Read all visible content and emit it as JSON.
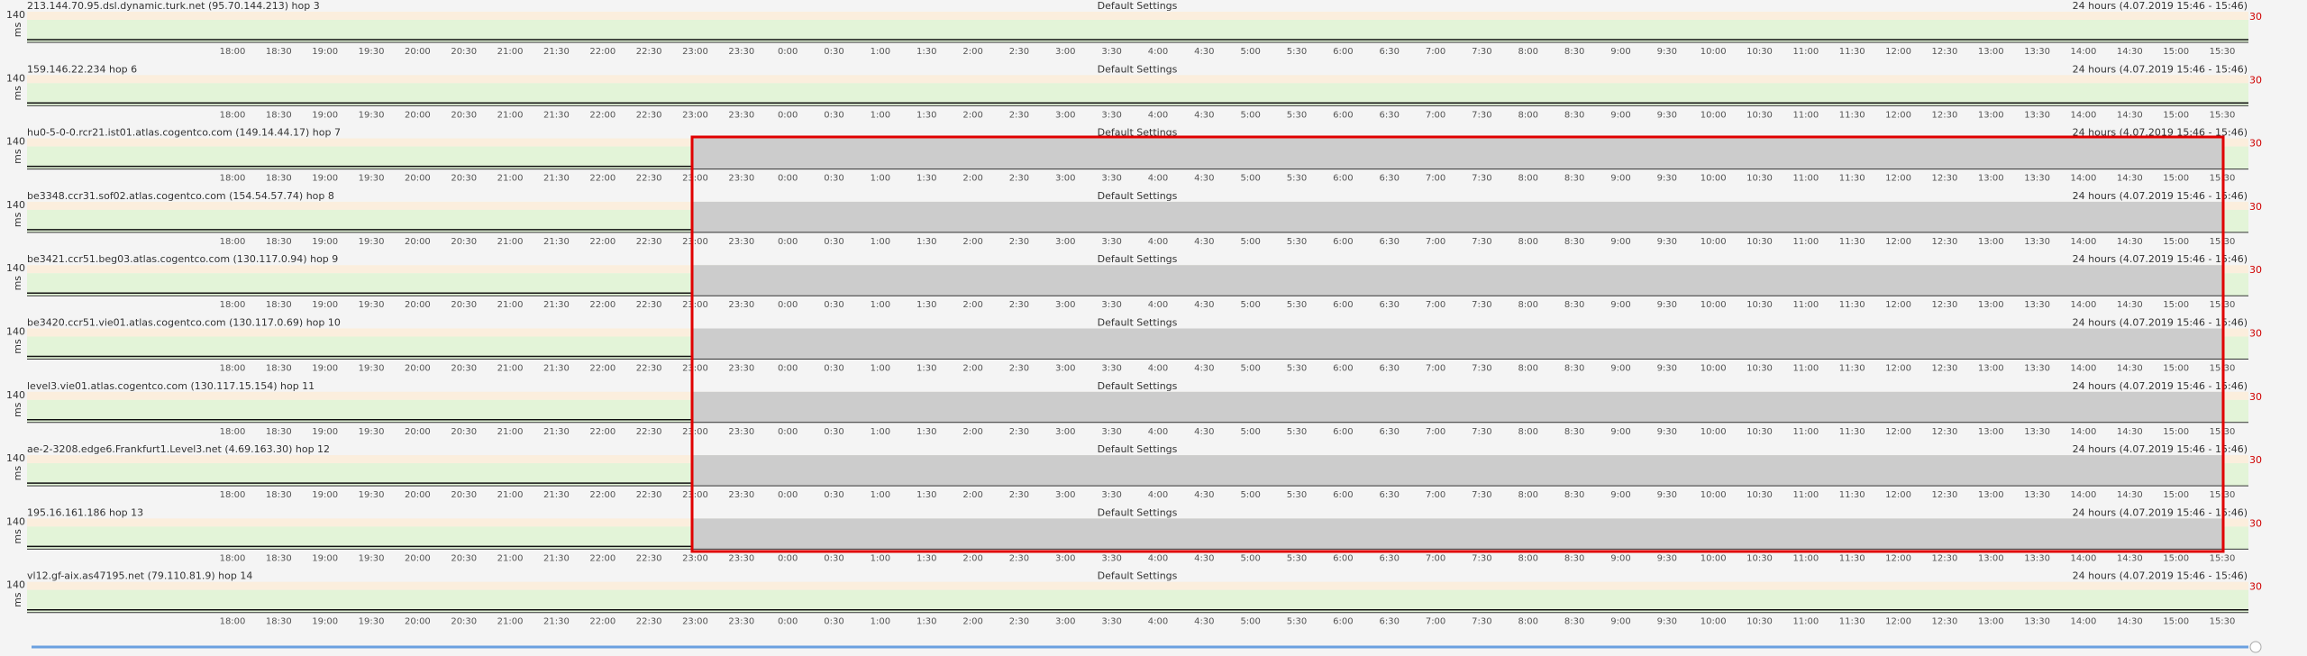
{
  "rows": [
    {
      "title": "213.144.70.95.dsl.dynamic.turk.net (95.70.144.213) hop 3"
    },
    {
      "title": "159.146.22.234 hop 6"
    },
    {
      "title": "hu0-5-0-0.rcr21.ist01.atlas.cogentco.com (149.14.44.17) hop 7"
    },
    {
      "title": "be3348.ccr31.sof02.atlas.cogentco.com (154.54.57.74) hop 8"
    },
    {
      "title": "be3421.ccr51.beg03.atlas.cogentco.com (130.117.0.94) hop 9"
    },
    {
      "title": "be3420.ccr51.vie01.atlas.cogentco.com (130.117.0.69) hop 10"
    },
    {
      "title": "level3.vie01.atlas.cogentco.com (130.117.15.154) hop 11"
    },
    {
      "title": "ae-2-3208.edge6.Frankfurt1.Level3.net (4.69.163.30) hop 12"
    },
    {
      "title": "195.16.161.186 hop 13"
    },
    {
      "title": "vl12.gf-aix.as47195.net (79.110.81.9) hop 14"
    }
  ],
  "settings_label": "Default Settings",
  "range_label": "24 hours (4.07.2019 15:46 - 15:46)",
  "y_max_label": "140",
  "y_unit": "ms",
  "right_label": "30",
  "time_ticks": [
    "18:00",
    "18:30",
    "19:00",
    "19:30",
    "20:00",
    "20:30",
    "21:00",
    "21:30",
    "22:00",
    "22:30",
    "23:00",
    "23:30",
    "0:00",
    "0:30",
    "1:00",
    "1:30",
    "2:00",
    "2:30",
    "3:00",
    "3:30",
    "4:00",
    "4:30",
    "5:00",
    "5:30",
    "6:00",
    "6:30",
    "7:00",
    "7:30",
    "8:00",
    "8:30",
    "9:00",
    "9:30",
    "10:00",
    "10:30",
    "11:00",
    "11:30",
    "12:00",
    "12:30",
    "13:00",
    "13:30",
    "14:00",
    "14:30",
    "15:00",
    "15:30"
  ]
}
